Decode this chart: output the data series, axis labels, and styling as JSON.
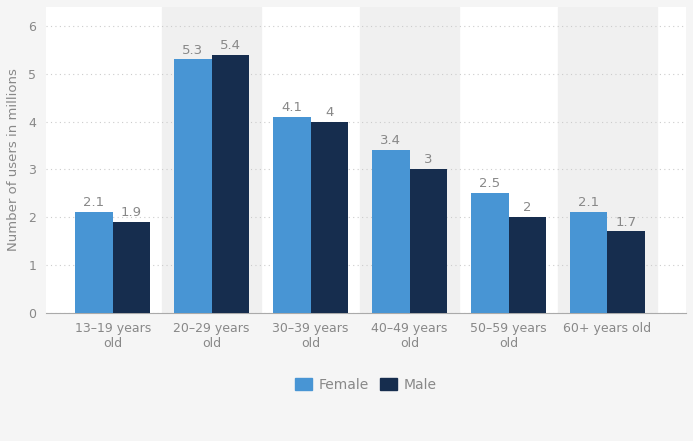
{
  "categories": [
    "13–19 years\nold",
    "20–29 years\nold",
    "30–39 years\nold",
    "40–49 years\nold",
    "50–59 years\nold",
    "60+ years old"
  ],
  "female_values": [
    2.1,
    5.3,
    4.1,
    3.4,
    2.5,
    2.1
  ],
  "male_values": [
    1.9,
    5.4,
    4.0,
    3.0,
    2.0,
    1.7
  ],
  "female_labels": [
    "2.1",
    "5.3",
    "4.1",
    "3.4",
    "2.5",
    "2.1"
  ],
  "male_labels": [
    "1.9",
    "5.4",
    "4",
    "3",
    "2",
    "1.7"
  ],
  "female_color": "#4895d4",
  "male_color": "#162d4e",
  "ylabel": "Number of users in millions",
  "ylim": [
    0,
    6.4
  ],
  "yticks": [
    0,
    1,
    2,
    3,
    4,
    5,
    6
  ],
  "bar_width": 0.38,
  "legend_labels": [
    "Female",
    "Male"
  ],
  "outer_bg_color": "#f5f5f5",
  "plot_bg_color": "#ffffff",
  "shaded_col_color": "#f0f0f0",
  "shaded_cols": [
    1,
    3,
    5
  ],
  "grid_color": "#cccccc",
  "label_color": "#888888",
  "label_fontsize": 9.5,
  "tick_fontsize": 9.0,
  "ylabel_fontsize": 9.5
}
